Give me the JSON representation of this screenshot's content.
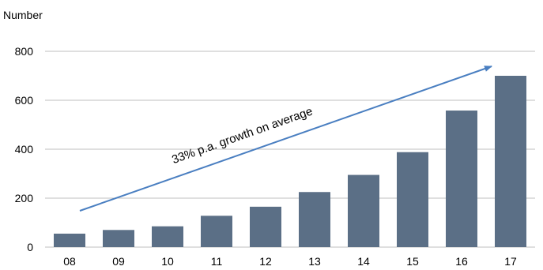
{
  "chart_data": {
    "type": "bar",
    "ylabel": "Number",
    "categories": [
      "08",
      "09",
      "10",
      "11",
      "12",
      "13",
      "14",
      "15",
      "16",
      "17"
    ],
    "values": [
      55,
      70,
      85,
      128,
      165,
      225,
      295,
      388,
      558,
      700
    ],
    "ylim": [
      0,
      800
    ],
    "yticks": [
      0,
      200,
      400,
      600,
      800
    ],
    "grid": true,
    "annotation": {
      "text": "33% p.a. growth on average"
    },
    "colors": {
      "bar": "#5b6f86",
      "arrow": "#4a7fc1",
      "grid": "#bfbfbf"
    }
  }
}
